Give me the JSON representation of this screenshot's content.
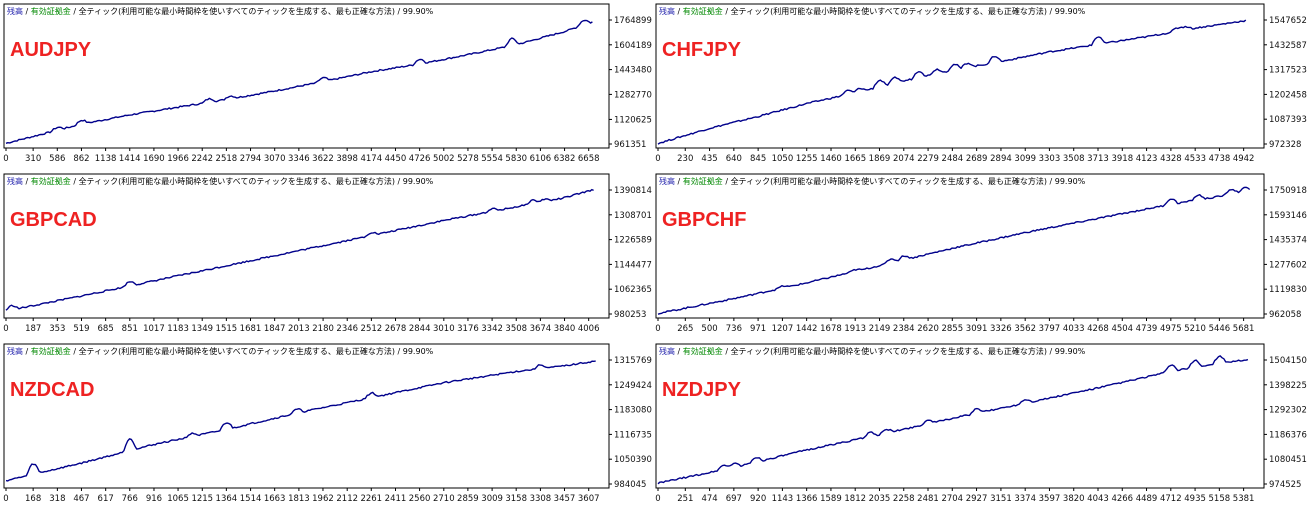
{
  "legend": {
    "balance": "残高",
    "equity": "有効証拠金",
    "model": "全ティック(利用可能な最小時間枠を使いすべてのティックを生成する、最も正確な方法)",
    "quality": "99.90%"
  },
  "colors": {
    "line": "#00008b",
    "balance_legend": "#1a1aaa",
    "equity_legend": "#008800",
    "pair_label": "#ee2222",
    "frame": "#000000"
  },
  "chart_data": [
    {
      "type": "line",
      "title": "AUDJPY",
      "x_ticks": [
        "0",
        "310",
        "586",
        "862",
        "1138",
        "1414",
        "1690",
        "1966",
        "2242",
        "2518",
        "2794",
        "3070",
        "3346",
        "3622",
        "3898",
        "4174",
        "4450",
        "4726",
        "5002",
        "5278",
        "5554",
        "5830",
        "6106",
        "6382",
        "6658"
      ],
      "y_ticks": [
        "961351",
        "1120625",
        "1282770",
        "1443480",
        "1604189",
        "1764899"
      ],
      "series": [
        {
          "points": [
            [
              0,
              966000
            ],
            [
              862,
              1090000
            ],
            [
              1414,
              1150000
            ],
            [
              2242,
              1225000
            ],
            [
              2518,
              1250000
            ],
            [
              3070,
              1305000
            ],
            [
              3622,
              1365000
            ],
            [
              4174,
              1430000
            ],
            [
              4726,
              1480000
            ],
            [
              5278,
              1540000
            ],
            [
              5830,
              1605000
            ],
            [
              6382,
              1690000
            ],
            [
              6700,
              1752000
            ]
          ],
          "spikes": [
            [
              586,
              18000
            ],
            [
              862,
              25000
            ],
            [
              2320,
              22000
            ],
            [
              2560,
              18000
            ],
            [
              3622,
              25000
            ],
            [
              4726,
              30000
            ],
            [
              5780,
              45000
            ],
            [
              6600,
              30000
            ]
          ]
        }
      ]
    },
    {
      "type": "line",
      "title": "CHFJPY",
      "x_ticks": [
        "0",
        "230",
        "435",
        "640",
        "845",
        "1050",
        "1255",
        "1460",
        "1665",
        "1869",
        "2074",
        "2279",
        "2484",
        "2689",
        "2894",
        "3099",
        "3303",
        "3508",
        "3713",
        "3918",
        "4123",
        "4328",
        "4533",
        "4738",
        "4942"
      ],
      "y_ticks": [
        "972328",
        "1087393",
        "1202458",
        "1317523",
        "1432587",
        "1547652"
      ],
      "series": [
        {
          "points": [
            [
              0,
              975000
            ],
            [
              435,
              1045000
            ],
            [
              845,
              1100000
            ],
            [
              1255,
              1160000
            ],
            [
              1665,
              1210000
            ],
            [
              2074,
              1265000
            ],
            [
              2484,
              1315000
            ],
            [
              2894,
              1355000
            ],
            [
              3303,
              1400000
            ],
            [
              3713,
              1435000
            ],
            [
              4123,
              1470000
            ],
            [
              4533,
              1510000
            ],
            [
              4960,
              1545000
            ]
          ],
          "spikes": [
            [
              1600,
              18000
            ],
            [
              1700,
              15000
            ],
            [
              1869,
              30000
            ],
            [
              2000,
              25000
            ],
            [
              2200,
              30000
            ],
            [
              2350,
              20000
            ],
            [
              2500,
              25000
            ],
            [
              2610,
              20000
            ],
            [
              2840,
              30000
            ],
            [
              3713,
              35000
            ],
            [
              4380,
              15000
            ],
            [
              4450,
              15000
            ]
          ]
        }
      ]
    },
    {
      "type": "line",
      "title": "GBPCAD",
      "x_ticks": [
        "0",
        "187",
        "353",
        "519",
        "685",
        "851",
        "1017",
        "1183",
        "1349",
        "1515",
        "1681",
        "1847",
        "2013",
        "2180",
        "2346",
        "2512",
        "2678",
        "2844",
        "3010",
        "3176",
        "3342",
        "3508",
        "3674",
        "3840",
        "4006"
      ],
      "y_ticks": [
        "980253",
        "1062365",
        "1144477",
        "1226589",
        "1308701",
        "1390814"
      ],
      "series": [
        {
          "points": [
            [
              0,
              990000
            ],
            [
              519,
              1040000
            ],
            [
              1017,
              1090000
            ],
            [
              1515,
              1140000
            ],
            [
              2013,
              1190000
            ],
            [
              2512,
              1240000
            ],
            [
              3010,
              1290000
            ],
            [
              3508,
              1335000
            ],
            [
              3840,
              1365000
            ],
            [
              4040,
              1392000
            ]
          ],
          "spikes": [
            [
              40,
              14000
            ],
            [
              851,
              14000
            ],
            [
              2512,
              10000
            ],
            [
              3342,
              8000
            ],
            [
              3620,
              12000
            ],
            [
              3700,
              8000
            ]
          ]
        }
      ]
    },
    {
      "type": "line",
      "title": "GBPCHF",
      "x_ticks": [
        "0",
        "265",
        "500",
        "736",
        "971",
        "1207",
        "1442",
        "1678",
        "1913",
        "2149",
        "2384",
        "2620",
        "2855",
        "3091",
        "3326",
        "3562",
        "3797",
        "4033",
        "4268",
        "4504",
        "4739",
        "4975",
        "5210",
        "5446",
        "5681"
      ],
      "y_ticks": [
        "962058",
        "1119830",
        "1277602",
        "1435374",
        "1593146",
        "1750918"
      ],
      "series": [
        {
          "points": [
            [
              0,
              965000
            ],
            [
              736,
              1060000
            ],
            [
              1442,
              1160000
            ],
            [
              2149,
              1270000
            ],
            [
              2855,
              1380000
            ],
            [
              3562,
              1480000
            ],
            [
              4268,
              1570000
            ],
            [
              4975,
              1660000
            ],
            [
              5446,
              1710000
            ],
            [
              5740,
              1750000
            ]
          ],
          "spikes": [
            [
              1207,
              12000
            ],
            [
              1913,
              10000
            ],
            [
              2260,
              25000
            ],
            [
              2384,
              25000
            ],
            [
              4975,
              35000
            ],
            [
              5240,
              30000
            ],
            [
              5560,
              30000
            ],
            [
              5690,
              20000
            ]
          ]
        }
      ]
    },
    {
      "type": "line",
      "title": "NZDCAD",
      "x_ticks": [
        "0",
        "168",
        "318",
        "467",
        "617",
        "766",
        "916",
        "1065",
        "1215",
        "1364",
        "1514",
        "1663",
        "1813",
        "1962",
        "2112",
        "2261",
        "2411",
        "2560",
        "2710",
        "2859",
        "3009",
        "3158",
        "3308",
        "3457",
        "3607"
      ],
      "y_ticks": [
        "984045",
        "1050390",
        "1116735",
        "1183080",
        "1249424",
        "1315769"
      ],
      "series": [
        {
          "points": [
            [
              0,
              993000
            ],
            [
              467,
              1040000
            ],
            [
              916,
              1090000
            ],
            [
              1364,
              1130000
            ],
            [
              1813,
              1175000
            ],
            [
              2261,
              1215000
            ],
            [
              2710,
              1255000
            ],
            [
              3158,
              1285000
            ],
            [
              3457,
              1300000
            ],
            [
              3650,
              1313000
            ]
          ],
          "spikes": [
            [
              168,
              28000
            ],
            [
              766,
              32000
            ],
            [
              1150,
              8000
            ],
            [
              1364,
              18000
            ],
            [
              1800,
              10000
            ],
            [
              2261,
              12000
            ],
            [
              3308,
              10000
            ]
          ]
        }
      ]
    },
    {
      "type": "line",
      "title": "NZDJPY",
      "x_ticks": [
        "0",
        "251",
        "474",
        "697",
        "920",
        "1143",
        "1366",
        "1589",
        "1812",
        "2035",
        "2258",
        "2481",
        "2704",
        "2927",
        "3151",
        "3374",
        "3597",
        "3820",
        "4043",
        "4266",
        "4489",
        "4712",
        "4935",
        "5158",
        "5381"
      ],
      "y_ticks": [
        "974525",
        "1080451",
        "1186376",
        "1292302",
        "1398225",
        "1504150"
      ],
      "series": [
        {
          "points": [
            [
              0,
              978000
            ],
            [
              697,
              1045000
            ],
            [
              1366,
              1120000
            ],
            [
              2035,
              1185000
            ],
            [
              2704,
              1255000
            ],
            [
              3374,
              1320000
            ],
            [
              4043,
              1385000
            ],
            [
              4712,
              1455000
            ],
            [
              5158,
              1490000
            ],
            [
              5420,
              1505000
            ]
          ],
          "spikes": [
            [
              600,
              18000
            ],
            [
              697,
              18000
            ],
            [
              900,
              20000
            ],
            [
              1950,
              18000
            ],
            [
              2100,
              15000
            ],
            [
              2481,
              15000
            ],
            [
              2927,
              18000
            ],
            [
              3374,
              15000
            ],
            [
              4712,
              28000
            ],
            [
              4935,
              30000
            ],
            [
              5158,
              30000
            ]
          ]
        }
      ]
    }
  ]
}
